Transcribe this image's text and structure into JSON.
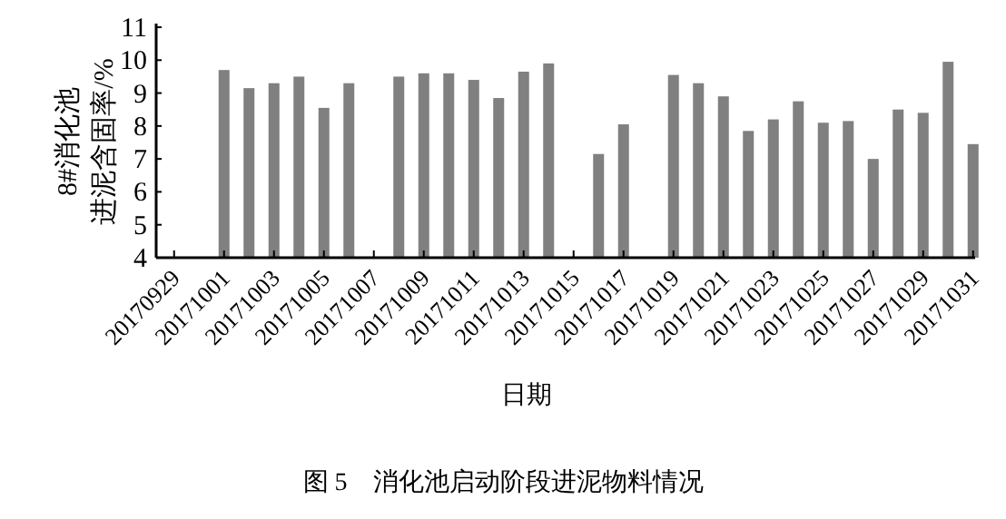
{
  "chart_data": {
    "type": "bar",
    "title": "图 5　消化池启动阶段进泥物料情况",
    "xlabel": "日期",
    "ylabel": "8#消化池进泥含固率/%",
    "categories": [
      "20170929",
      null,
      "20171001",
      null,
      "20171003",
      null,
      "20171005",
      null,
      "20171007",
      null,
      "20171009",
      null,
      "20171011",
      null,
      "20171013",
      null,
      "20171015",
      null,
      "20171017",
      null,
      "20171019",
      null,
      "20171021",
      null,
      "20171023",
      null,
      "20171025",
      null,
      "20171027",
      null,
      "20171029",
      null,
      "20171031"
    ],
    "values": [
      null,
      null,
      9.7,
      9.15,
      9.3,
      9.5,
      8.55,
      9.3,
      null,
      9.5,
      9.6,
      9.6,
      9.4,
      8.85,
      9.65,
      9.9,
      null,
      7.15,
      8.05,
      null,
      9.55,
      9.3,
      8.9,
      7.85,
      8.2,
      8.75,
      8.1,
      8.15,
      7.0,
      8.5,
      8.4,
      9.95,
      7.45
    ],
    "color": "#808080",
    "ylim": [
      4,
      11
    ],
    "yticks": [
      4,
      5,
      6,
      7,
      8,
      9,
      10,
      11
    ],
    "grid": false
  }
}
